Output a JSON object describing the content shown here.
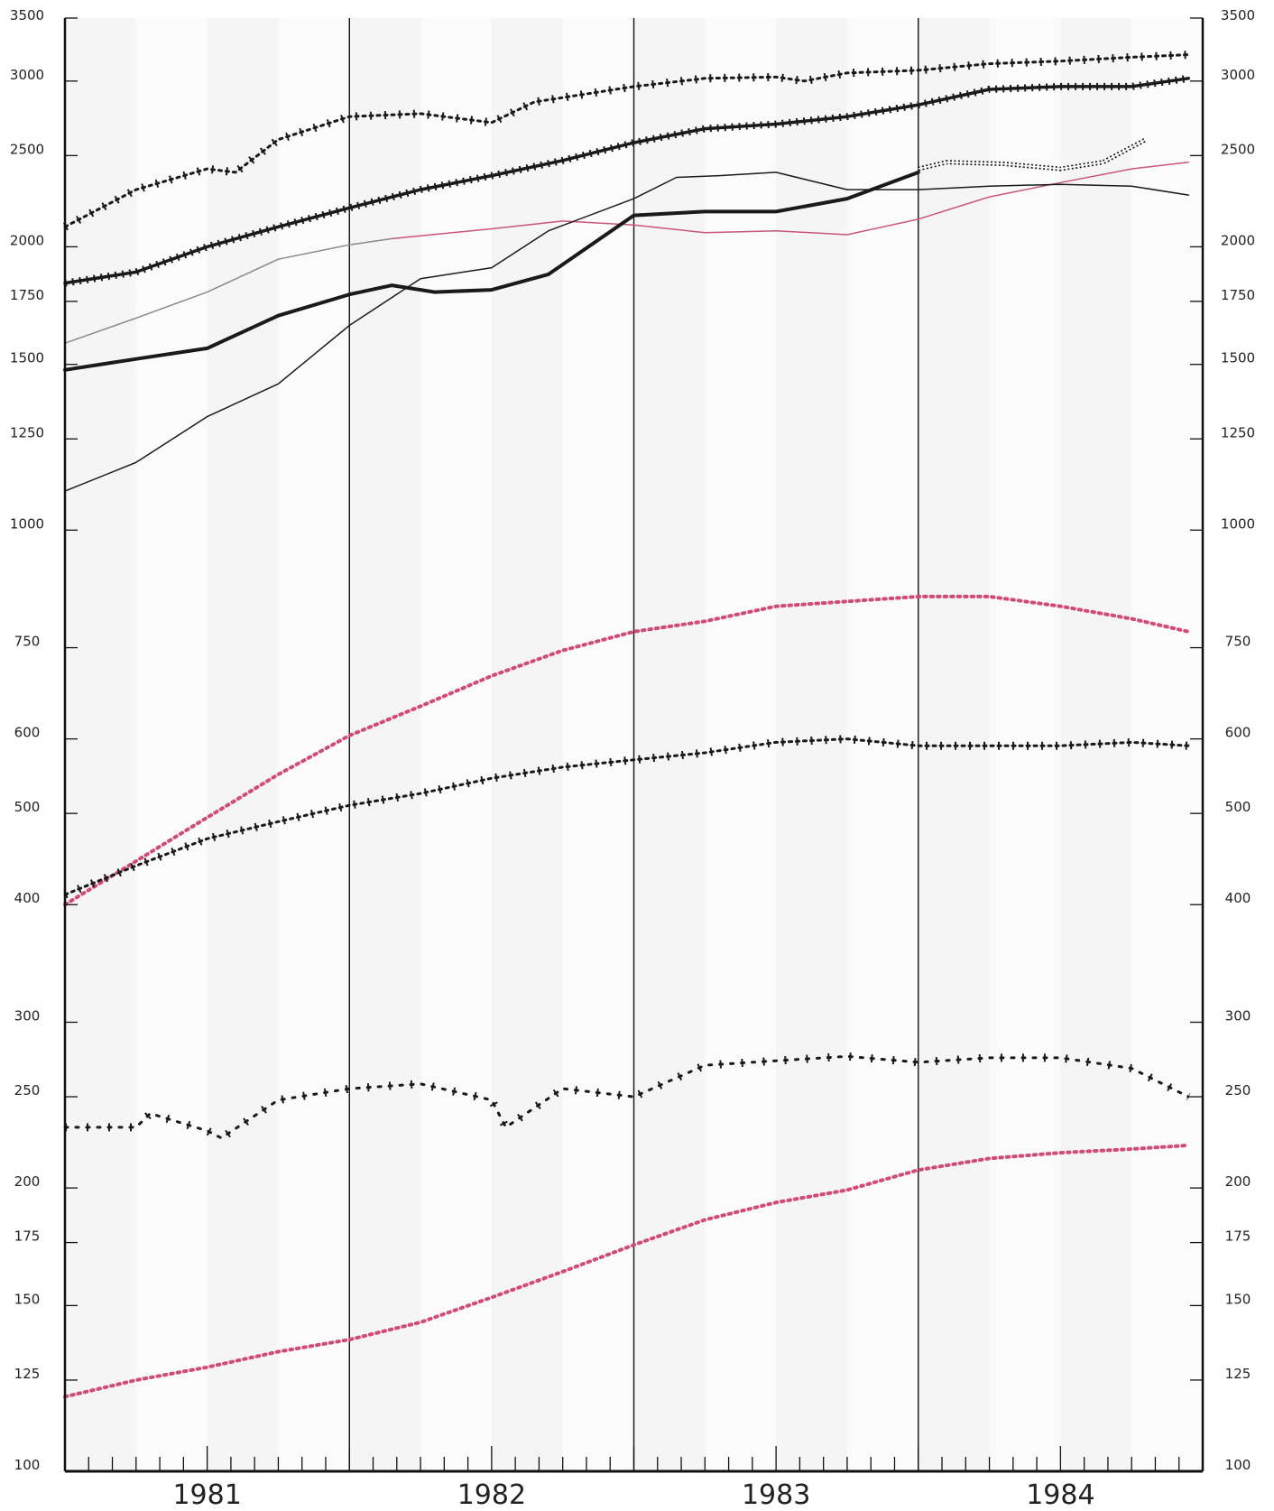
{
  "chart_data": {
    "type": "line",
    "title": "",
    "xlabel": "",
    "ylabel": "",
    "yscale": "log",
    "ylim": [
      100,
      3500
    ],
    "xlim": [
      1980.5,
      1984.5
    ],
    "grid": false,
    "legend": "none",
    "x_labels": [
      {
        "x": 1981,
        "label": "1981"
      },
      {
        "x": 1982,
        "label": "1982"
      },
      {
        "x": 1983,
        "label": "1983"
      },
      {
        "x": 1984,
        "label": "1984"
      }
    ],
    "y_ticks": [
      "100",
      "125",
      "150",
      "175",
      "200",
      "250",
      "300",
      "400",
      "500",
      "600",
      "750",
      "1000",
      "1250",
      "1500",
      "1750",
      "2000",
      "2500",
      "3000",
      "3500"
    ],
    "year_dividers": [
      1981.5,
      1982.5,
      1983.5
    ],
    "series": [
      {
        "style": "plus",
        "color": "#1a1a1a",
        "x": [
          1980.5,
          1980.75,
          1981.0,
          1981.1,
          1981.25,
          1981.5,
          1981.75,
          1982.0,
          1982.15,
          1982.5,
          1982.75,
          1983.0,
          1983.1,
          1983.25,
          1983.5,
          1983.75,
          1984.0,
          1984.25,
          1984.45
        ],
        "y": [
          2100,
          2300,
          2420,
          2400,
          2600,
          2750,
          2770,
          2710,
          2850,
          2960,
          3020,
          3030,
          3000,
          3060,
          3080,
          3130,
          3150,
          3180,
          3200
        ]
      },
      {
        "style": "dense-plus",
        "color": "#1a1a1a",
        "x": [
          1980.5,
          1980.75,
          1981.0,
          1981.25,
          1981.5,
          1981.75,
          1982.0,
          1982.25,
          1982.5,
          1982.75,
          1983.0,
          1983.25,
          1983.5,
          1983.75,
          1984.0,
          1984.25,
          1984.45
        ],
        "y": [
          1830,
          1880,
          2000,
          2100,
          2200,
          2300,
          2380,
          2470,
          2580,
          2670,
          2700,
          2750,
          2830,
          2940,
          2960,
          2960,
          3020
        ]
      },
      {
        "style": "thin",
        "color": "#888888",
        "x": [
          1980.5,
          1980.75,
          1981.0,
          1981.25,
          1981.5,
          1981.65
        ],
        "y": [
          1580,
          1680,
          1790,
          1940,
          2010,
          2040
        ]
      },
      {
        "style": "thin",
        "color": "#c8557a",
        "x": [
          1981.65,
          1982.0,
          1982.25,
          1982.5,
          1982.75,
          1983.0,
          1983.25,
          1983.5,
          1983.75,
          1984.0,
          1984.25,
          1984.45
        ],
        "y": [
          2040,
          2090,
          2130,
          2110,
          2070,
          2080,
          2060,
          2140,
          2260,
          2340,
          2420,
          2460
        ]
      },
      {
        "style": "thick",
        "color": "#1a1a1a",
        "x": [
          1980.5,
          1980.75,
          1981.0,
          1981.25,
          1981.5,
          1981.65,
          1981.8,
          1982.0,
          1982.2,
          1982.5,
          1982.75,
          1983.0,
          1983.25,
          1983.5
        ],
        "y": [
          1480,
          1520,
          1560,
          1690,
          1780,
          1820,
          1790,
          1800,
          1870,
          2160,
          2180,
          2180,
          2250,
          2400
        ]
      },
      {
        "style": "double-dotted",
        "color": "#1a1a1a",
        "x": [
          1983.5,
          1983.6,
          1983.8,
          1984.0,
          1984.15,
          1984.3
        ],
        "y": [
          2420,
          2460,
          2450,
          2420,
          2460,
          2600
        ]
      },
      {
        "style": "thin",
        "color": "#1a1a1a",
        "x": [
          1980.5,
          1980.75,
          1981.0,
          1981.25,
          1981.5,
          1981.75,
          1982.0,
          1982.2,
          1982.5,
          1982.65,
          1982.8,
          1983.0,
          1983.25,
          1983.5,
          1983.75,
          1984.0,
          1984.25,
          1984.45
        ],
        "y": [
          1100,
          1180,
          1320,
          1430,
          1650,
          1850,
          1900,
          2080,
          2250,
          2370,
          2380,
          2400,
          2300,
          2300,
          2320,
          2330,
          2320,
          2270
        ]
      },
      {
        "style": "dotted",
        "color": "#d14a7a",
        "x": [
          1980.5,
          1980.75,
          1981.0,
          1981.25,
          1981.5,
          1981.75,
          1982.0,
          1982.25,
          1982.5,
          1982.75,
          1983.0,
          1983.25,
          1983.5,
          1983.75,
          1984.0,
          1984.25,
          1984.45
        ],
        "y": [
          400,
          445,
          495,
          550,
          605,
          650,
          700,
          745,
          780,
          800,
          830,
          840,
          850,
          850,
          830,
          805,
          780
        ]
      },
      {
        "style": "plus",
        "color": "#1a1a1a",
        "x": [
          1980.5,
          1980.75,
          1981.0,
          1981.25,
          1981.5,
          1981.75,
          1982.0,
          1982.25,
          1982.5,
          1982.75,
          1983.0,
          1983.25,
          1983.5,
          1983.75,
          1984.0,
          1984.25,
          1984.45
        ],
        "y": [
          410,
          440,
          470,
          490,
          510,
          525,
          545,
          560,
          570,
          580,
          595,
          600,
          590,
          590,
          590,
          595,
          590
        ]
      },
      {
        "style": "sparse-plus",
        "color": "#1a1a1a",
        "x": [
          1980.5,
          1980.75,
          1980.8,
          1981.0,
          1981.05,
          1981.25,
          1981.5,
          1981.75,
          1982.0,
          1982.05,
          1982.25,
          1982.5,
          1982.75,
          1983.0,
          1983.25,
          1983.5,
          1983.75,
          1984.0,
          1984.25,
          1984.45
        ],
        "y": [
          232,
          232,
          240,
          230,
          226,
          248,
          255,
          258,
          248,
          232,
          255,
          250,
          270,
          273,
          276,
          272,
          275,
          275,
          268,
          250
        ]
      },
      {
        "style": "dotted",
        "color": "#d14a7a",
        "x": [
          1980.5,
          1980.75,
          1981.0,
          1981.25,
          1981.5,
          1981.75,
          1982.0,
          1982.25,
          1982.5,
          1982.75,
          1983.0,
          1983.25,
          1983.5,
          1983.75,
          1984.0,
          1984.25,
          1984.45
        ],
        "y": [
          120,
          125,
          129,
          134,
          138,
          144,
          153,
          163,
          174,
          185,
          193,
          199,
          209,
          215,
          218,
          220,
          222
        ]
      }
    ]
  }
}
